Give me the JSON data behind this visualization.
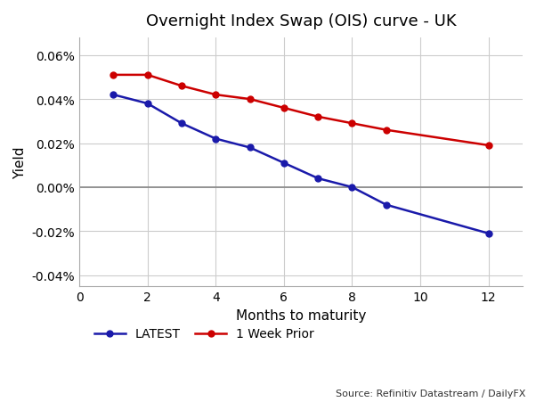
{
  "title": "Overnight Index Swap (OIS) curve - UK",
  "xlabel": "Months to maturity",
  "ylabel": "Yield",
  "source_text": "Source: Refinitiv Datastream / DailyFX",
  "latest_x": [
    1,
    2,
    3,
    4,
    5,
    6,
    7,
    8,
    9,
    12
  ],
  "latest_y": [
    0.00042,
    0.00038,
    0.00029,
    0.00022,
    0.00018,
    0.00011,
    4e-05,
    0.0,
    -8e-05,
    -0.00021
  ],
  "prior_x": [
    1,
    2,
    3,
    4,
    5,
    6,
    7,
    8,
    9,
    12
  ],
  "prior_y": [
    0.00051,
    0.00051,
    0.00046,
    0.00042,
    0.0004,
    0.00036,
    0.00032,
    0.00029,
    0.00026,
    0.00019
  ],
  "latest_color": "#1a1aaa",
  "prior_color": "#cc0000",
  "background_color": "#ffffff",
  "grid_color": "#cccccc",
  "ylim": [
    -0.00045,
    0.00068
  ],
  "xlim": [
    0,
    13
  ],
  "ytick_vals": [
    -0.0004,
    -0.0002,
    0.0,
    0.0002,
    0.0004,
    0.0006
  ],
  "ytick_labels": [
    "-0.04%",
    "-0.02%",
    "0.00%",
    "0.02%",
    "0.04%",
    "0.06%"
  ],
  "xtick_vals": [
    0,
    2,
    4,
    6,
    8,
    10,
    12
  ],
  "xtick_labels": [
    "0",
    "2",
    "4",
    "6",
    "8",
    "10",
    "12"
  ],
  "legend_latest": "LATEST",
  "legend_prior": "1 Week Prior",
  "zero_line_color": "#888888"
}
